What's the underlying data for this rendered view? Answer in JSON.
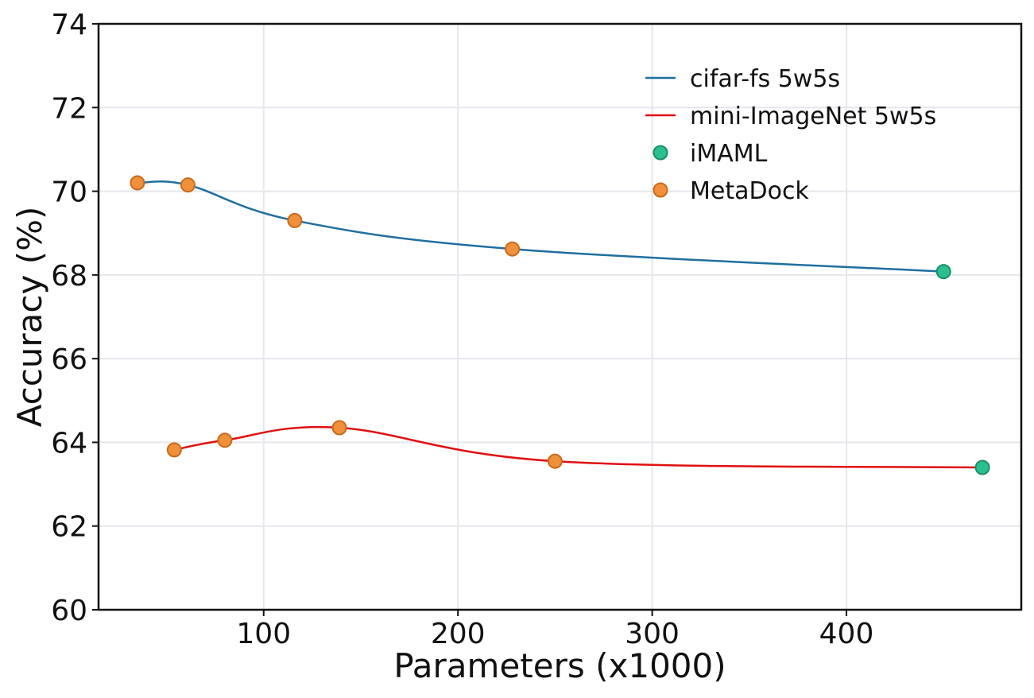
{
  "chart_data": {
    "type": "line",
    "title": "",
    "xlabel": "Parameters (x1000)",
    "ylabel": "Accuracy (%)",
    "xlim": [
      15,
      490
    ],
    "ylim": [
      60,
      74
    ],
    "xticks": [
      100,
      200,
      300,
      400
    ],
    "yticks": [
      60,
      62,
      64,
      66,
      68,
      70,
      72,
      74
    ],
    "grid": true,
    "legend_position": "top-right",
    "series": [
      {
        "name": "cifar-fs 5w5s",
        "color": "#1f6f9f",
        "x": [
          35,
          61,
          116,
          228,
          450
        ],
        "y": [
          70.2,
          70.15,
          69.3,
          68.62,
          68.08
        ],
        "markers": [
          "MetaDock",
          "MetaDock",
          "MetaDock",
          "MetaDock",
          "iMAML"
        ]
      },
      {
        "name": "mini-ImageNet 5w5s",
        "color": "#e01010",
        "x": [
          54,
          80,
          139,
          250,
          470
        ],
        "y": [
          63.82,
          64.05,
          64.35,
          63.55,
          63.4
        ],
        "markers": [
          "MetaDock",
          "MetaDock",
          "MetaDock",
          "MetaDock",
          "iMAML"
        ]
      }
    ],
    "marker_styles": {
      "iMAML": {
        "fill": "#2bbf8f",
        "stroke": "#1a8e68"
      },
      "MetaDock": {
        "fill": "#f0903a",
        "stroke": "#c86a1c"
      }
    },
    "legend": [
      {
        "kind": "line",
        "label": "cifar-fs 5w5s",
        "color": "#1f6f9f"
      },
      {
        "kind": "line",
        "label": "mini-ImageNet 5w5s",
        "color": "#e01010"
      },
      {
        "kind": "marker",
        "label": "iMAML",
        "marker": "iMAML"
      },
      {
        "kind": "marker",
        "label": "MetaDock",
        "marker": "MetaDock"
      }
    ]
  }
}
